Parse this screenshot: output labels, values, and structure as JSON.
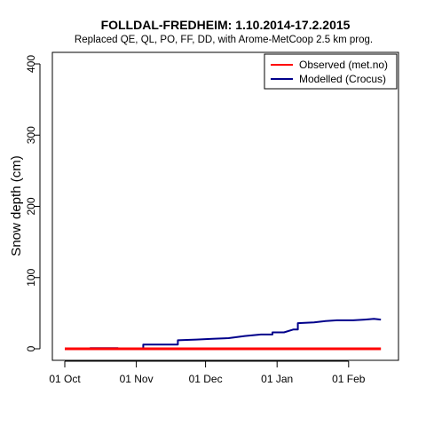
{
  "chart_data": {
    "type": "line",
    "title": "FOLLDAL-FREDHEIM: 1.10.2014-17.2.2015",
    "subtitle": "Replaced QE, QL, PO, FF, DD,  with Arome-MetCoop 2.5 km prog.",
    "xlabel": "",
    "ylabel": "Snow depth (cm)",
    "xlim": [
      "2014-10-01",
      "2015-02-17"
    ],
    "ylim": [
      0,
      400
    ],
    "x_ticks": [
      {
        "date": "2014-10-01",
        "label": "01 Oct"
      },
      {
        "date": "2014-11-01",
        "label": "01 Nov"
      },
      {
        "date": "2014-12-01",
        "label": "01 Dec"
      },
      {
        "date": "2015-01-01",
        "label": "01 Jan"
      },
      {
        "date": "2015-02-01",
        "label": "01 Feb"
      }
    ],
    "y_ticks": [
      0,
      100,
      200,
      300,
      400
    ],
    "grid": false,
    "legend_position": "top-right",
    "series": [
      {
        "name": "Observed (met.no)",
        "color": "#ff0000",
        "points": [
          {
            "x": "2014-10-01",
            "y": 0
          },
          {
            "x": "2015-02-15",
            "y": 0
          }
        ]
      },
      {
        "name": "Modelled (Crocus)",
        "color": "#00008b",
        "points": [
          {
            "x": "2014-10-01",
            "y": 0
          },
          {
            "x": "2014-10-12",
            "y": 0
          },
          {
            "x": "2014-10-12",
            "y": 1
          },
          {
            "x": "2014-10-24",
            "y": 1
          },
          {
            "x": "2014-10-24",
            "y": 0
          },
          {
            "x": "2014-11-04",
            "y": 0
          },
          {
            "x": "2014-11-04",
            "y": 6
          },
          {
            "x": "2014-11-19",
            "y": 6
          },
          {
            "x": "2014-11-19",
            "y": 12
          },
          {
            "x": "2014-11-27",
            "y": 13
          },
          {
            "x": "2014-12-04",
            "y": 14
          },
          {
            "x": "2014-12-11",
            "y": 15
          },
          {
            "x": "2014-12-18",
            "y": 18
          },
          {
            "x": "2014-12-25",
            "y": 20
          },
          {
            "x": "2014-12-30",
            "y": 20
          },
          {
            "x": "2014-12-30",
            "y": 23
          },
          {
            "x": "2015-01-04",
            "y": 23
          },
          {
            "x": "2015-01-08",
            "y": 27
          },
          {
            "x": "2015-01-10",
            "y": 27
          },
          {
            "x": "2015-01-10",
            "y": 36
          },
          {
            "x": "2015-01-17",
            "y": 37
          },
          {
            "x": "2015-01-22",
            "y": 39
          },
          {
            "x": "2015-01-27",
            "y": 40
          },
          {
            "x": "2015-02-03",
            "y": 40
          },
          {
            "x": "2015-02-08",
            "y": 41
          },
          {
            "x": "2015-02-12",
            "y": 42
          },
          {
            "x": "2015-02-15",
            "y": 41
          }
        ]
      }
    ]
  }
}
